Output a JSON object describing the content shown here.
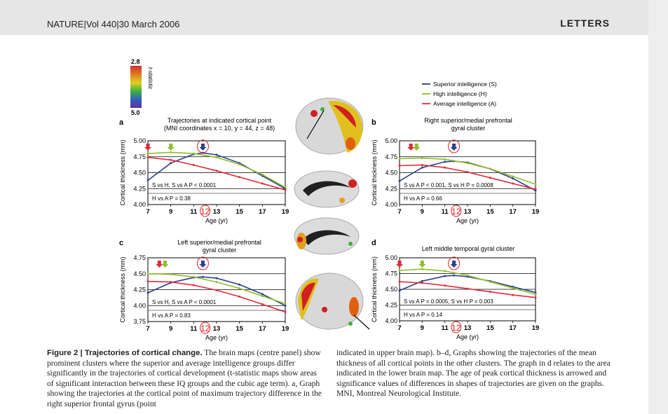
{
  "header": {
    "journal": "NATURE|Vol 440|30 March 2006",
    "section": "LETTERS"
  },
  "colors": {
    "superior": "#2a3f8f",
    "high": "#8fbf2a",
    "average": "#e02a3a",
    "highlight": "#e02020"
  },
  "colorbar": {
    "max": "2.8",
    "min": "5.0",
    "label": "t-statistic"
  },
  "legend": [
    {
      "key": "superior",
      "label": "Superior intelligence (S)"
    },
    {
      "key": "high",
      "label": "High intelligence (H)"
    },
    {
      "key": "average",
      "label": "Average intelligence (A)"
    }
  ],
  "panels": [
    {
      "letter": "a",
      "title1": "Trajectories at indicated cortical point",
      "title2": "(MNI coordinates x = 10, y = 44, z = 48)",
      "ylabel": "Cortical thickness (mm)",
      "xlabel": "Age (yr)",
      "stat1": "S vs H, S vs A P < 0.0001",
      "stat2": "H vs A P = 0.38"
    },
    {
      "letter": "b",
      "title1": "Right superior/medial prefrontal",
      "title2": "gyral cluster",
      "ylabel": "Cortical thickness (mm)",
      "xlabel": "Age (yr)",
      "stat1": "S vs A P < 0.001, S vs H P = 0.0008",
      "stat2": "H vs A P = 0.66"
    },
    {
      "letter": "c",
      "title1": "Left superior/medial prefrontal",
      "title2": "gyral cluster",
      "ylabel": "Cortical thickness (mm)",
      "xlabel": "Age (yr)",
      "stat1": "S vs H, S vs A P < 0.0001",
      "stat2": "H vs A P = 0.83"
    },
    {
      "letter": "d",
      "title1": "Left middle temporal gyral cluster",
      "title2": "",
      "ylabel": "Cortical thickness (mm)",
      "xlabel": "Age (yr)",
      "stat1": "S vs A P = 0.0005, S vs H P = 0.003",
      "stat2": "H vs A P = 0.14"
    }
  ],
  "chart_data": [
    {
      "type": "line",
      "panel": "a",
      "ylim": [
        4.0,
        5.0
      ],
      "xlim": [
        7,
        19
      ],
      "x_ticks": [
        7,
        9,
        11,
        13,
        15,
        17,
        19
      ],
      "y_ticks": [
        4.0,
        4.25,
        4.5,
        4.75,
        5.0
      ],
      "highlight_label": "12",
      "peak_ages": {
        "superior": 11.8,
        "high": 9.0,
        "average": 7.0
      },
      "series": [
        {
          "name": "Superior intelligence (S)",
          "x": [
            7,
            9,
            11,
            11.8,
            13,
            15,
            17,
            19
          ],
          "y": [
            4.38,
            4.65,
            4.79,
            4.81,
            4.78,
            4.65,
            4.45,
            4.25
          ]
        },
        {
          "name": "High intelligence (H)",
          "x": [
            7,
            9,
            11,
            13,
            15,
            17,
            19
          ],
          "y": [
            4.8,
            4.82,
            4.8,
            4.74,
            4.63,
            4.47,
            4.27
          ]
        },
        {
          "name": "Average intelligence (A)",
          "x": [
            7,
            9,
            11,
            13,
            15,
            17,
            19
          ],
          "y": [
            4.74,
            4.7,
            4.62,
            4.53,
            4.43,
            4.33,
            4.23
          ]
        }
      ]
    },
    {
      "type": "line",
      "panel": "b",
      "ylim": [
        4.0,
        5.0
      ],
      "xlim": [
        7,
        19
      ],
      "x_ticks": [
        7,
        9,
        11,
        13,
        15,
        17,
        19
      ],
      "y_ticks": [
        4.0,
        4.25,
        4.5,
        4.75,
        5.0
      ],
      "highlight_label": "12",
      "peak_ages": {
        "superior": 11.8,
        "high": 8.5,
        "average": 8.0
      },
      "series": [
        {
          "name": "Superior intelligence (S)",
          "x": [
            7,
            9,
            11,
            11.8,
            13,
            15,
            17,
            19
          ],
          "y": [
            4.37,
            4.58,
            4.67,
            4.68,
            4.66,
            4.56,
            4.41,
            4.22
          ]
        },
        {
          "name": "High intelligence (H)",
          "x": [
            7,
            9,
            11,
            13,
            15,
            17,
            19
          ],
          "y": [
            4.72,
            4.73,
            4.71,
            4.65,
            4.56,
            4.44,
            4.32
          ]
        },
        {
          "name": "Average intelligence (A)",
          "x": [
            7,
            9,
            11,
            13,
            15,
            17,
            19
          ],
          "y": [
            4.61,
            4.62,
            4.58,
            4.51,
            4.42,
            4.33,
            4.24
          ]
        }
      ]
    },
    {
      "type": "line",
      "panel": "c",
      "ylim": [
        3.75,
        4.75
      ],
      "xlim": [
        7,
        19
      ],
      "x_ticks": [
        7,
        9,
        11,
        13,
        15,
        17,
        19
      ],
      "y_ticks": [
        3.75,
        4.0,
        4.25,
        4.5,
        4.75
      ],
      "highlight_label": "12",
      "peak_ages": {
        "superior": 11.8,
        "high": 8.5,
        "average": 8.0
      },
      "series": [
        {
          "name": "Superior intelligence (S)",
          "x": [
            7,
            9,
            11,
            11.8,
            13,
            15,
            17,
            19
          ],
          "y": [
            4.2,
            4.36,
            4.44,
            4.45,
            4.43,
            4.33,
            4.18,
            4.0
          ]
        },
        {
          "name": "High intelligence (H)",
          "x": [
            7,
            9,
            11,
            13,
            15,
            17,
            19
          ],
          "y": [
            4.5,
            4.49,
            4.45,
            4.37,
            4.27,
            4.15,
            4.03
          ]
        },
        {
          "name": "Average intelligence (A)",
          "x": [
            7,
            9,
            11,
            13,
            15,
            17,
            19
          ],
          "y": [
            4.38,
            4.37,
            4.32,
            4.24,
            4.14,
            4.02,
            3.9
          ]
        }
      ]
    },
    {
      "type": "line",
      "panel": "d",
      "ylim": [
        4.0,
        5.0
      ],
      "xlim": [
        7,
        19
      ],
      "x_ticks": [
        7,
        9,
        11,
        13,
        15,
        17,
        19
      ],
      "y_ticks": [
        4.0,
        4.25,
        4.5,
        4.75,
        5.0
      ],
      "highlight_label": "12",
      "peak_ages": {
        "superior": 11.8,
        "high": 9.0,
        "average": 7.0
      },
      "series": [
        {
          "name": "Superior intelligence (S)",
          "x": [
            7,
            9,
            11,
            11.8,
            13,
            15,
            17,
            19
          ],
          "y": [
            4.48,
            4.63,
            4.71,
            4.72,
            4.7,
            4.63,
            4.54,
            4.45
          ]
        },
        {
          "name": "High intelligence (H)",
          "x": [
            7,
            9,
            11,
            13,
            15,
            17,
            19
          ],
          "y": [
            4.8,
            4.82,
            4.79,
            4.72,
            4.62,
            4.52,
            4.42
          ]
        },
        {
          "name": "Average intelligence (A)",
          "x": [
            7,
            9,
            11,
            13,
            15,
            17,
            19
          ],
          "y": [
            4.62,
            4.6,
            4.56,
            4.51,
            4.46,
            4.41,
            4.37
          ]
        }
      ]
    }
  ],
  "caption_left": {
    "head": "Figure 2 | Trajectories of cortical change.",
    "body": " The brain maps (centre panel) show prominent clusters where the superior and average intelligence groups differ significantly in the trajectories of cortical development (t-statistic maps show areas of significant interaction between these IQ groups and the cubic age term). a, Graph showing the trajectories at the cortical point of maximum trajectory difference in the right superior frontal gyrus (point"
  },
  "caption_right": "indicated in upper brain map). b–d, Graphs showing the trajectories of the mean thickness of all cortical points in the other clusters. The graph in d relates to the area indicated in the lower brain map. The age of peak cortical thickness is arrowed and significance values of differences in shapes of trajectories are given on the graphs. MNI, Montreal Neurological Institute."
}
